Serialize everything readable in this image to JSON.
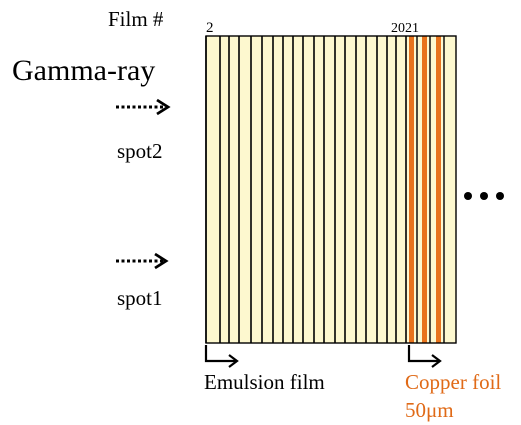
{
  "labels": {
    "film_header": "Film #",
    "film_first": "2",
    "film_last": "2021",
    "source": "Gamma-ray",
    "spot_upper": "spot2",
    "spot_lower": "spot1",
    "emulsion": "Emulsion film",
    "copper_line1": "Copper foil",
    "copper_line2": "50μm"
  },
  "colors": {
    "film_fill": "#fdf8cf",
    "copper": "#e8731c",
    "copper_text": "#e06a17",
    "line": "#000000"
  },
  "icons": {
    "arrow": "dotted-right-arrow-icon",
    "pointer": "corner-right-arrow-icon",
    "continuation": "ellipsis-icon"
  }
}
